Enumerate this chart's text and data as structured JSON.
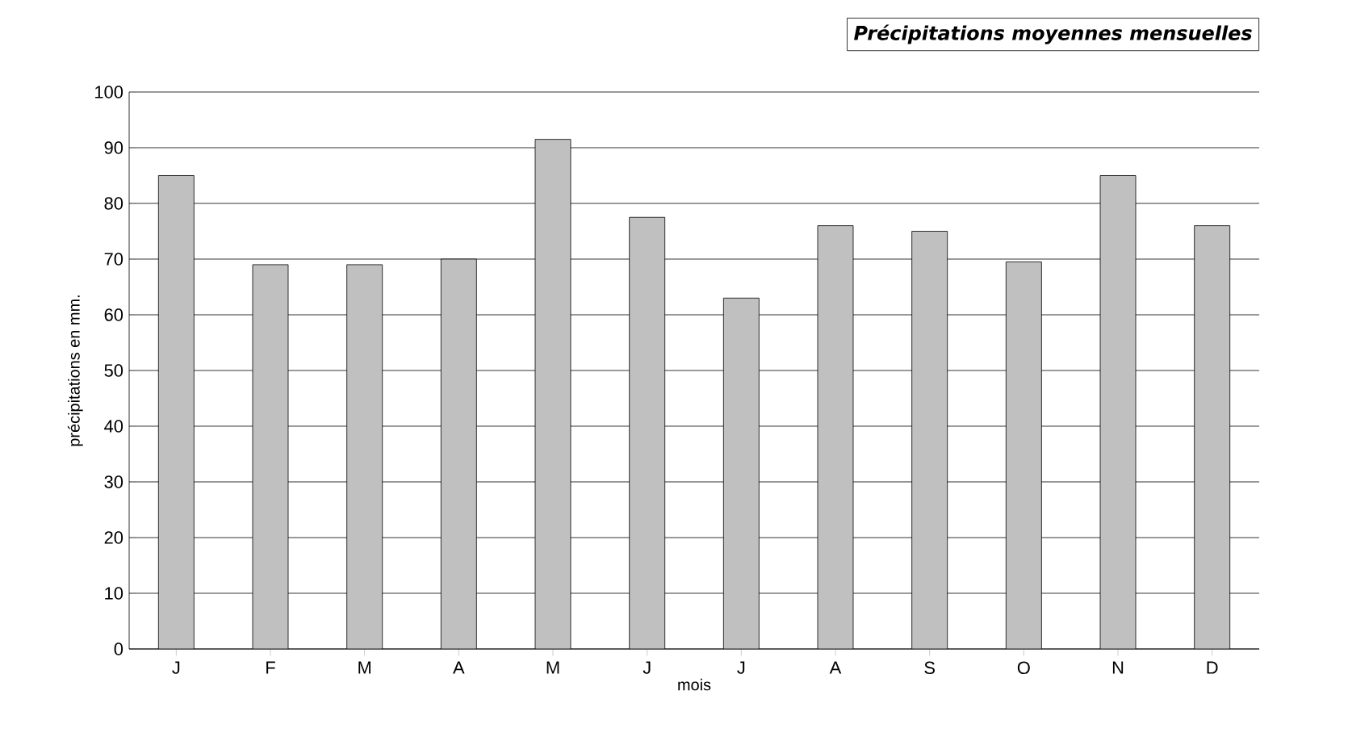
{
  "chart_data": {
    "type": "bar",
    "title": "**Précipitations moyennes mensuelles**",
    "xlabel": "mois",
    "ylabel": "précipitations en mm.",
    "categories": [
      "J",
      "F",
      "M",
      "A",
      "M",
      "J",
      "J",
      "A",
      "S",
      "O",
      "N",
      "D"
    ],
    "values": [
      85,
      69,
      69,
      70,
      91.5,
      77.5,
      63,
      76,
      75,
      69.5,
      85,
      76
    ],
    "color": "#c0c0c0",
    "ylim": [
      0,
      100
    ],
    "yticks": [
      0,
      10,
      20,
      30,
      40,
      50,
      60,
      70,
      80,
      90,
      100
    ],
    "grid": "y"
  }
}
